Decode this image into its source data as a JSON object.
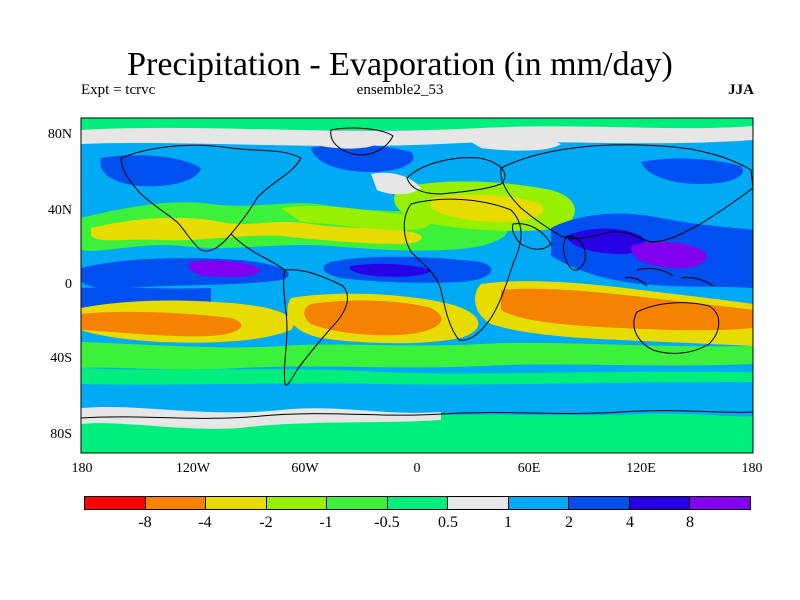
{
  "title": "Precipitation - Evaporation (in mm/day)",
  "experiment": "Expt = tcrvc",
  "run_name": "ensemble2_53",
  "season": "JJA",
  "y_axis_labels": [
    "80N",
    "40N",
    "0",
    "40S",
    "80S"
  ],
  "x_axis_labels": [
    "180",
    "120W",
    "60W",
    "0",
    "60E",
    "120E",
    "180"
  ],
  "legend": {
    "labels": [
      "-8",
      "-4",
      "-2",
      "-1",
      "-0.5",
      "0.5",
      "1",
      "2",
      "4",
      "8"
    ],
    "colors": [
      "#ff0000",
      "#f58200",
      "#e6dc00",
      "#96f000",
      "#3cf03c",
      "#00ef7c",
      "#e6e6e6",
      "#00aaf5",
      "#0050f0",
      "#2800e6",
      "#8200f0"
    ]
  }
}
